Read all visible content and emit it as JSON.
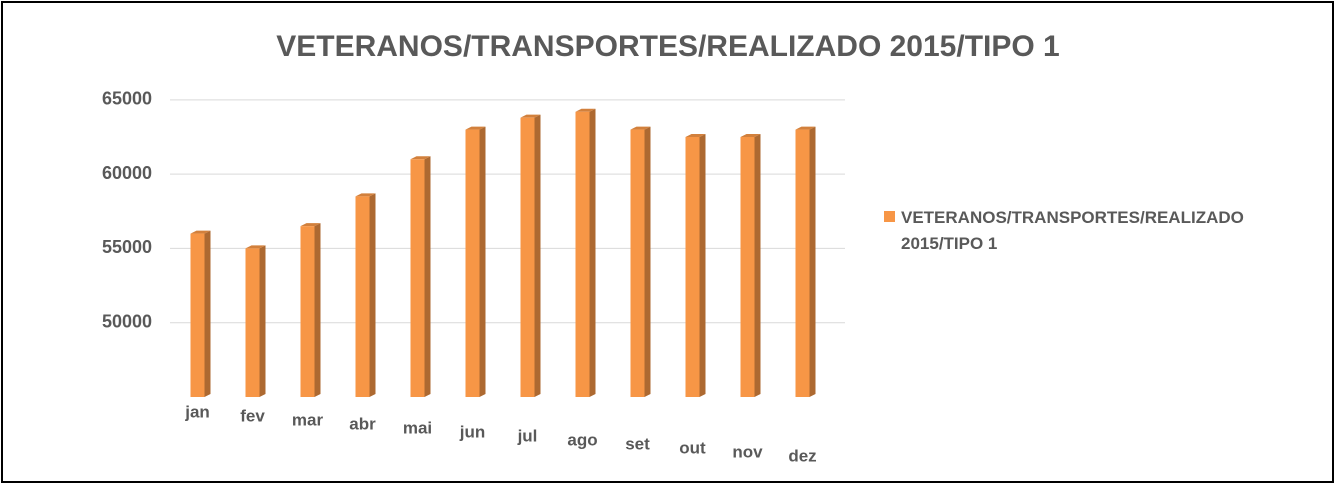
{
  "chart_data": {
    "type": "bar3d",
    "title": "VETERANOS/TRANSPORTES/REALIZADO 2015/TIPO 1",
    "categories": [
      "jan",
      "fev",
      "mar",
      "abr",
      "mai",
      "jun",
      "jul",
      "ago",
      "set",
      "out",
      "nov",
      "dez"
    ],
    "series": [
      {
        "name": "VETERANOS/TRANSPORTES/REALIZADO 2015/TIPO 1",
        "color": "#f79646",
        "values": [
          56000,
          55000,
          56500,
          58500,
          61000,
          63000,
          63800,
          64200,
          63000,
          62500,
          62500,
          63000
        ]
      }
    ],
    "ylim": [
      45000,
      66000
    ],
    "yticks": [
      50000,
      55000,
      60000,
      65000
    ],
    "grid": true,
    "legend": "right"
  }
}
